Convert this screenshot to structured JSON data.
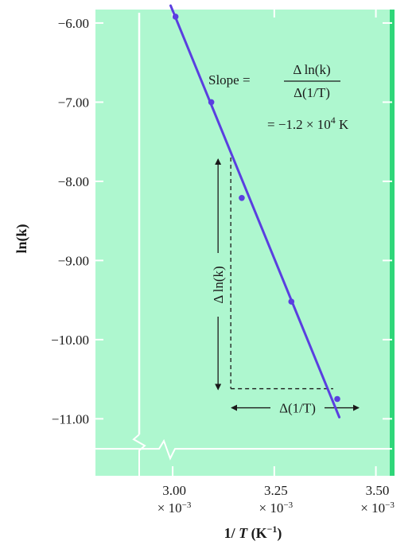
{
  "chart_data": {
    "type": "scatter",
    "x_unit_multiplier": "× 10⁻³",
    "xlim": [
      2.81,
      3.54
    ],
    "ylim": [
      -11.72,
      -5.83
    ],
    "x_ticks": [
      3.0,
      3.25,
      3.5
    ],
    "x_tick_labels": [
      "3.00",
      "3.25",
      "3.50"
    ],
    "x_tick_multiplier_label": "× 10",
    "x_tick_multiplier_exponent": "−3",
    "y_ticks": [
      -6.0,
      -7.0,
      -8.0,
      -9.0,
      -10.0,
      -11.0
    ],
    "y_tick_labels": [
      "−6.00",
      "−7.00",
      "−8.00",
      "−9.00",
      "−10.00",
      "−11.00"
    ],
    "xlabel": "1/ T (K⁻¹)",
    "xlabel_parts": {
      "pre": "1/ ",
      "var": "T",
      "post": " (K",
      "sup": "−1",
      "close": ")"
    },
    "ylabel": "ln(k)",
    "points": [
      {
        "x": 3.007,
        "y": -5.92
      },
      {
        "x": 3.095,
        "y": -7.0
      },
      {
        "x": 3.17,
        "y": -8.21
      },
      {
        "x": 3.292,
        "y": -9.52
      },
      {
        "x": 3.405,
        "y": -10.75
      }
    ],
    "fit_line": {
      "x": [
        2.995,
        3.41
      ],
      "y": [
        -5.78,
        -10.98
      ]
    },
    "slope_triangle": {
      "x_start": 3.143,
      "x_end": 3.395,
      "y_top": -7.7,
      "y_bottom": -10.62
    },
    "annotations": {
      "slope_label": "Slope =",
      "slope_numerator": "Δ ln(k)",
      "slope_denominator": "Δ(1/T)",
      "slope_value_prefix": "= −1.2 × 10",
      "slope_value_exp": "4",
      "slope_value_unit": " K",
      "delta_lnk": "Δ ln(k)",
      "delta_invT": "Δ(1/T)"
    },
    "colors": {
      "plot_background": "#aef7cf",
      "grid": "#ffffff",
      "line": "#5a3fe0",
      "points": "#5a3fe0",
      "right_edge": "#2fd679"
    },
    "grid": true,
    "axis_break_shown": true
  }
}
